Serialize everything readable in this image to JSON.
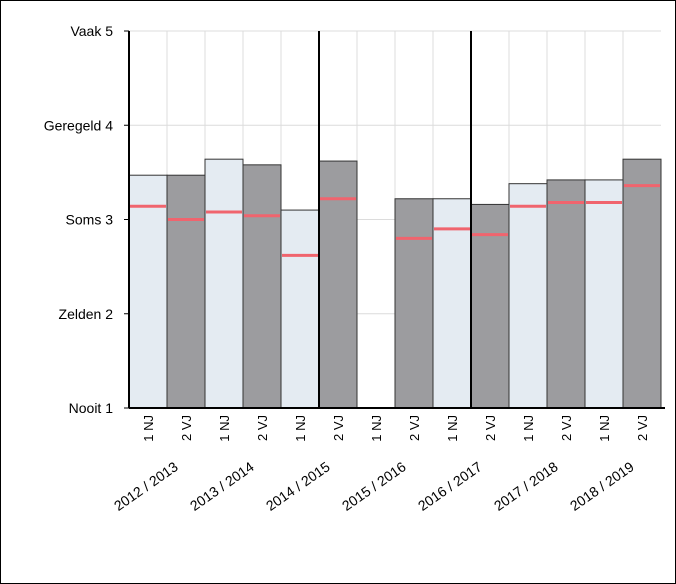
{
  "chart_data": {
    "type": "bar",
    "title": "",
    "xlabel": "",
    "ylabel": "",
    "ylim": [
      1,
      5
    ],
    "yticks": [
      {
        "value": 5,
        "label": "Vaak 5"
      },
      {
        "value": 4,
        "label": "Geregeld 4"
      },
      {
        "value": 3,
        "label": "Soms 3"
      },
      {
        "value": 2,
        "label": "Zelden 2"
      },
      {
        "value": 1,
        "label": "Nooit 1"
      }
    ],
    "grid": true,
    "legend": "none",
    "groups": [
      "2012 / 2013",
      "2013 / 2014",
      "2014 / 2015",
      "2015 / 2016",
      "2016 / 2017",
      "2017 / 2018",
      "2018 / 2019"
    ],
    "categories": [
      "1 NJ",
      "2 VJ",
      "1 NJ",
      "2 VJ",
      "1 NJ",
      "2 VJ",
      "1 NJ",
      "2 VJ",
      "1 NJ",
      "2 VJ",
      "1 NJ",
      "2 VJ",
      "1 NJ",
      "2 VJ"
    ],
    "values": [
      3.47,
      3.47,
      3.64,
      3.58,
      3.1,
      3.62,
      null,
      3.22,
      3.22,
      3.16,
      3.38,
      3.42,
      3.42,
      3.64
    ],
    "markers": [
      3.14,
      3.0,
      3.08,
      3.04,
      2.62,
      3.22,
      null,
      2.8,
      2.9,
      2.84,
      3.14,
      3.18,
      3.18,
      3.36
    ],
    "colors": {
      "nj_fill": "#e4ebf2",
      "vj_fill": "#9c9c9f",
      "bar_stroke": "#333333",
      "marker": "#f0646e",
      "grid": "#dcdcdc",
      "axis": "#000000"
    }
  }
}
